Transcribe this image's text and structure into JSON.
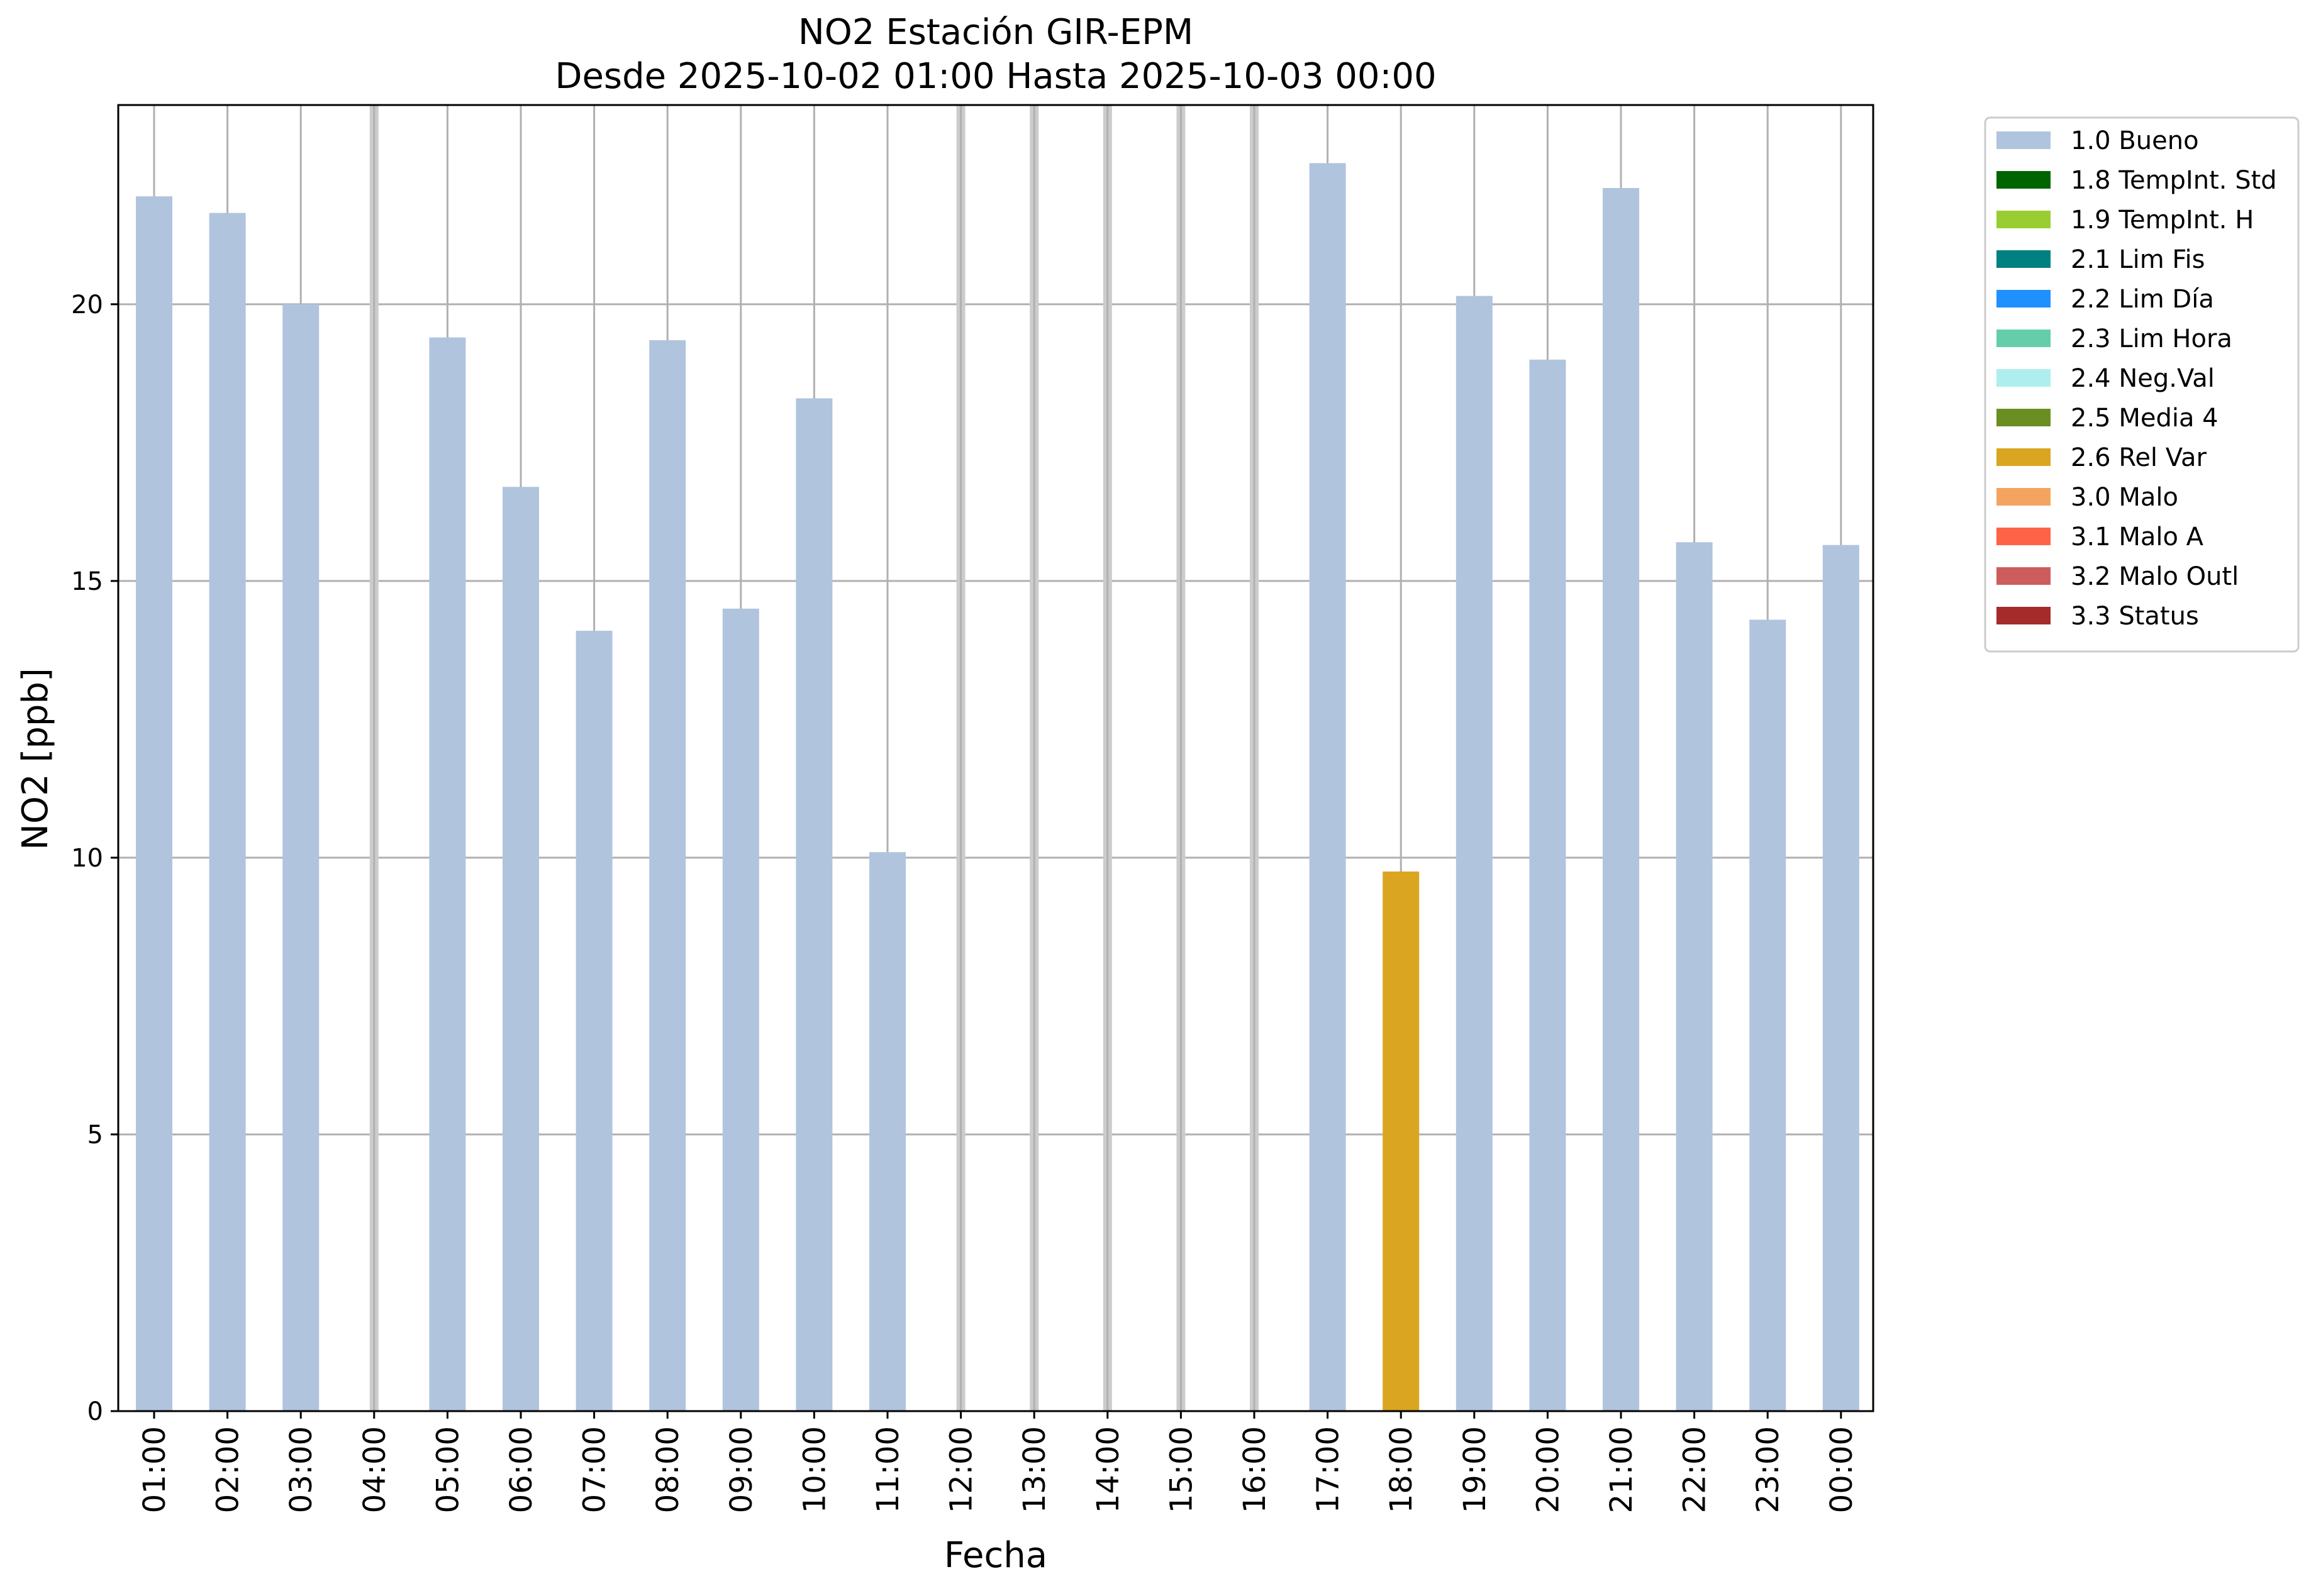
{
  "chart_data": {
    "type": "bar",
    "title": "NO2 Estación GIR-EPM",
    "subtitle": "Desde 2025-10-02 01:00 Hasta 2025-10-03 00:00",
    "xlabel": "Fecha",
    "ylabel": "NO2 [ppb]",
    "ylim": [
      0,
      23.6
    ],
    "yticks": [
      0,
      5,
      10,
      15,
      20
    ],
    "grid": true,
    "legend_position": "outside-top-right",
    "categories": [
      "01:00",
      "02:00",
      "03:00",
      "04:00",
      "05:00",
      "06:00",
      "07:00",
      "08:00",
      "09:00",
      "10:00",
      "11:00",
      "12:00",
      "13:00",
      "14:00",
      "15:00",
      "16:00",
      "17:00",
      "18:00",
      "19:00",
      "20:00",
      "21:00",
      "22:00",
      "23:00",
      "00:00"
    ],
    "values": [
      21.95,
      21.65,
      20.0,
      null,
      19.4,
      16.7,
      14.1,
      19.35,
      14.5,
      18.3,
      10.1,
      null,
      null,
      null,
      null,
      null,
      22.55,
      9.75,
      20.15,
      19.0,
      22.1,
      15.7,
      14.3,
      15.65
    ],
    "flags": [
      "1.0",
      "1.0",
      "1.0",
      null,
      "1.0",
      "1.0",
      "1.0",
      "1.0",
      "1.0",
      "1.0",
      "1.0",
      null,
      null,
      null,
      null,
      null,
      "1.0",
      "2.6",
      "1.0",
      "1.0",
      "1.0",
      "1.0",
      "1.0",
      "1.0"
    ],
    "missing_color": "#cccccc",
    "legend": [
      {
        "code": "1.0",
        "label": "1.0 Bueno",
        "color": "#b0c4de"
      },
      {
        "code": "1.8",
        "label": "1.8 TempInt. Std",
        "color": "#006400"
      },
      {
        "code": "1.9",
        "label": "1.9 TempInt. H",
        "color": "#9acd32"
      },
      {
        "code": "2.1",
        "label": "2.1 Lim Fis",
        "color": "#008080"
      },
      {
        "code": "2.2",
        "label": "2.2 Lim Día",
        "color": "#1e90ff"
      },
      {
        "code": "2.3",
        "label": "2.3 Lim Hora",
        "color": "#66cdaa"
      },
      {
        "code": "2.4",
        "label": "2.4 Neg.Val",
        "color": "#afeeee"
      },
      {
        "code": "2.5",
        "label": "2.5 Media 4",
        "color": "#6b8e23"
      },
      {
        "code": "2.6",
        "label": "2.6 Rel Var",
        "color": "#daa520"
      },
      {
        "code": "3.0",
        "label": "3.0 Malo",
        "color": "#f4a460"
      },
      {
        "code": "3.1",
        "label": "3.1 Malo A",
        "color": "#ff6347"
      },
      {
        "code": "3.2",
        "label": "3.2 Malo Outl",
        "color": "#cd5c5c"
      },
      {
        "code": "3.3",
        "label": "3.3 Status",
        "color": "#a52a2a"
      }
    ]
  }
}
